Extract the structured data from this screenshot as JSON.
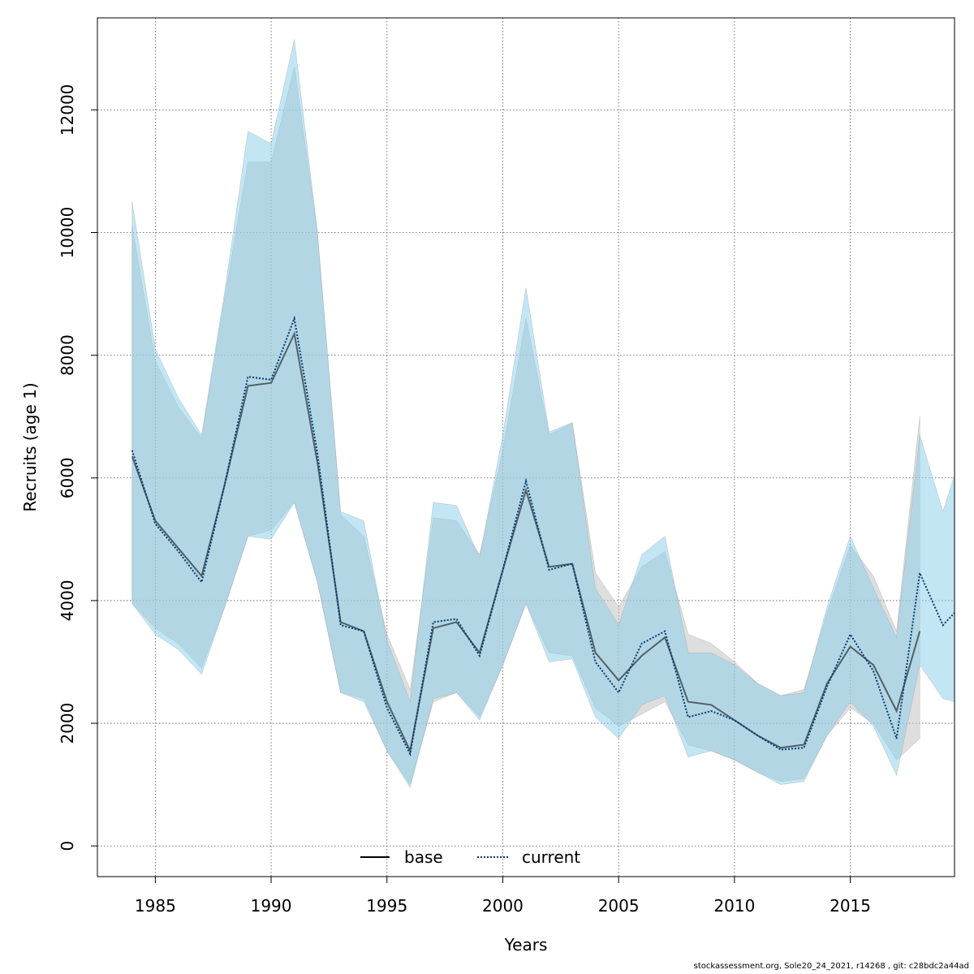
{
  "chart_data": {
    "type": "line",
    "xlabel": "Years",
    "ylabel": "Recruits (age 1)",
    "xlim": [
      1982.5,
      2019.5
    ],
    "ylim": [
      -500,
      13500
    ],
    "xticks": [
      1985,
      1990,
      1995,
      2000,
      2005,
      2010,
      2015
    ],
    "yticks": [
      0,
      2000,
      4000,
      6000,
      8000,
      10000,
      12000
    ],
    "grid": true,
    "legend_position": "bottom-center",
    "series": [
      {
        "name": "base",
        "line_color": "#000000",
        "line_style": "solid",
        "band_color": "#bdbdbd",
        "x": [
          1984,
          1985,
          1986,
          1987,
          1988,
          1989,
          1990,
          1991,
          1992,
          1993,
          1994,
          1995,
          1996,
          1997,
          1998,
          1999,
          2000,
          2001,
          2002,
          2003,
          2004,
          2005,
          2006,
          2007,
          2008,
          2009,
          2010,
          2011,
          2012,
          2013,
          2014,
          2015,
          2016,
          2017,
          2018
        ],
        "y": [
          6350,
          5300,
          4850,
          4400,
          5900,
          7500,
          7550,
          8350,
          6250,
          3650,
          3500,
          2350,
          1550,
          3550,
          3650,
          3150,
          4500,
          5800,
          4550,
          4600,
          3150,
          2700,
          3100,
          3400,
          2350,
          2300,
          2050,
          1800,
          1600,
          1650,
          2650,
          3250,
          2950,
          2200,
          3500
        ],
        "lower": [
          3950,
          3550,
          3300,
          2900,
          3900,
          5050,
          5150,
          5600,
          4300,
          2500,
          2400,
          1550,
          1000,
          2350,
          2500,
          2100,
          2950,
          3950,
          3150,
          3100,
          2250,
          1950,
          2150,
          2350,
          1650,
          1550,
          1400,
          1200,
          1050,
          1100,
          1800,
          2250,
          2000,
          1400,
          1750
        ],
        "upper": [
          10100,
          7900,
          7150,
          6650,
          8950,
          11150,
          11150,
          12700,
          10000,
          5400,
          5050,
          3450,
          2550,
          5350,
          5300,
          4750,
          6450,
          8600,
          6700,
          6900,
          4450,
          3900,
          4550,
          4800,
          3450,
          3300,
          3000,
          2650,
          2450,
          2550,
          3800,
          4900,
          4400,
          3500,
          7000
        ]
      },
      {
        "name": "current",
        "line_color": "#003a70",
        "line_style": "dotted",
        "band_color": "#87ceeb",
        "x": [
          1984,
          1985,
          1986,
          1987,
          1988,
          1989,
          1990,
          1991,
          1992,
          1993,
          1994,
          1995,
          1996,
          1997,
          1998,
          1999,
          2000,
          2001,
          2002,
          2003,
          2004,
          2005,
          2006,
          2007,
          2008,
          2009,
          2010,
          2011,
          2012,
          2013,
          2014,
          2015,
          2016,
          2017,
          2018,
          2019,
          2019.5
        ],
        "y": [
          6450,
          5250,
          4800,
          4300,
          5900,
          7650,
          7600,
          8600,
          6400,
          3600,
          3500,
          2250,
          1500,
          3650,
          3700,
          3100,
          4500,
          5950,
          4500,
          4600,
          3000,
          2500,
          3300,
          3500,
          2100,
          2200,
          2050,
          1800,
          1570,
          1600,
          2600,
          3450,
          2850,
          1750,
          4450,
          3600,
          3800
        ],
        "lower": [
          3950,
          3450,
          3200,
          2800,
          3900,
          5050,
          5000,
          5600,
          4300,
          2500,
          2350,
          1550,
          950,
          2400,
          2500,
          2050,
          2950,
          3950,
          3000,
          3050,
          2100,
          1750,
          2300,
          2450,
          1450,
          1550,
          1400,
          1200,
          1000,
          1050,
          1800,
          2350,
          1950,
          1150,
          2950,
          2400,
          2350
        ],
        "upper": [
          10500,
          8100,
          7300,
          6700,
          9050,
          11650,
          11450,
          13150,
          10000,
          5450,
          5300,
          3350,
          2350,
          5600,
          5550,
          4700,
          6700,
          9100,
          6750,
          6900,
          4200,
          3600,
          4750,
          5050,
          3150,
          3150,
          2950,
          2650,
          2450,
          2500,
          3900,
          5050,
          4200,
          3400,
          6700,
          5450,
          6050
        ]
      }
    ]
  },
  "legend": {
    "items": [
      {
        "label": "base"
      },
      {
        "label": "current"
      }
    ]
  },
  "credit": "stockassessment.org, Sole20_24_2021, r14268 , git: c28bdc2a44ad"
}
